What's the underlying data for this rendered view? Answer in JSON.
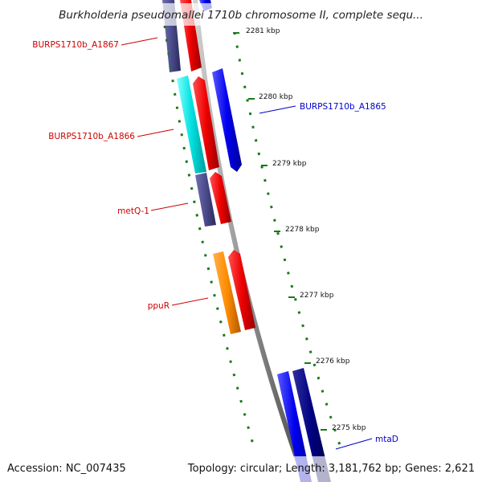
{
  "title": "Burkholderia pseudomallei 1710b chromosome II, complete sequ...",
  "footer": {
    "accession": "Accession: NC_007435",
    "summary": "Topology: circular; Length: 3,181,762 bp; Genes: 2,621"
  },
  "scale_labels": [
    "2281 kbp",
    "2280 kbp",
    "2279 kbp",
    "2278 kbp",
    "2277 kbp",
    "2276 kbp",
    "2275 kbp"
  ],
  "gene_labels": [
    {
      "id": "BURPS1710b_A1867",
      "text": "BURPS1710b_A1867",
      "color": "#cc0000"
    },
    {
      "id": "BURPS1710b_A1865",
      "text": "BURPS1710b_A1865",
      "color": "#0000cc"
    },
    {
      "id": "BURPS1710b_A1866",
      "text": "BURPS1710b_A1866",
      "color": "#cc0000"
    },
    {
      "id": "metQ-1",
      "text": "metQ-1",
      "color": "#cc0000"
    },
    {
      "id": "ppuR",
      "text": "ppuR",
      "color": "#cc0000"
    },
    {
      "id": "mtaD",
      "text": "mtaD",
      "color": "#0000cc"
    }
  ],
  "colors": {
    "backbone": "#8c8c8c",
    "tick": "#1a7a1a",
    "forward_cds": "#0000ee",
    "reverse_cds": "#ee0000",
    "gene_group_1": "#4b4b8c",
    "gene_group_2": "#00e0e0",
    "gene_group_3": "#ff8c00",
    "gene_group_4": "#000080"
  }
}
